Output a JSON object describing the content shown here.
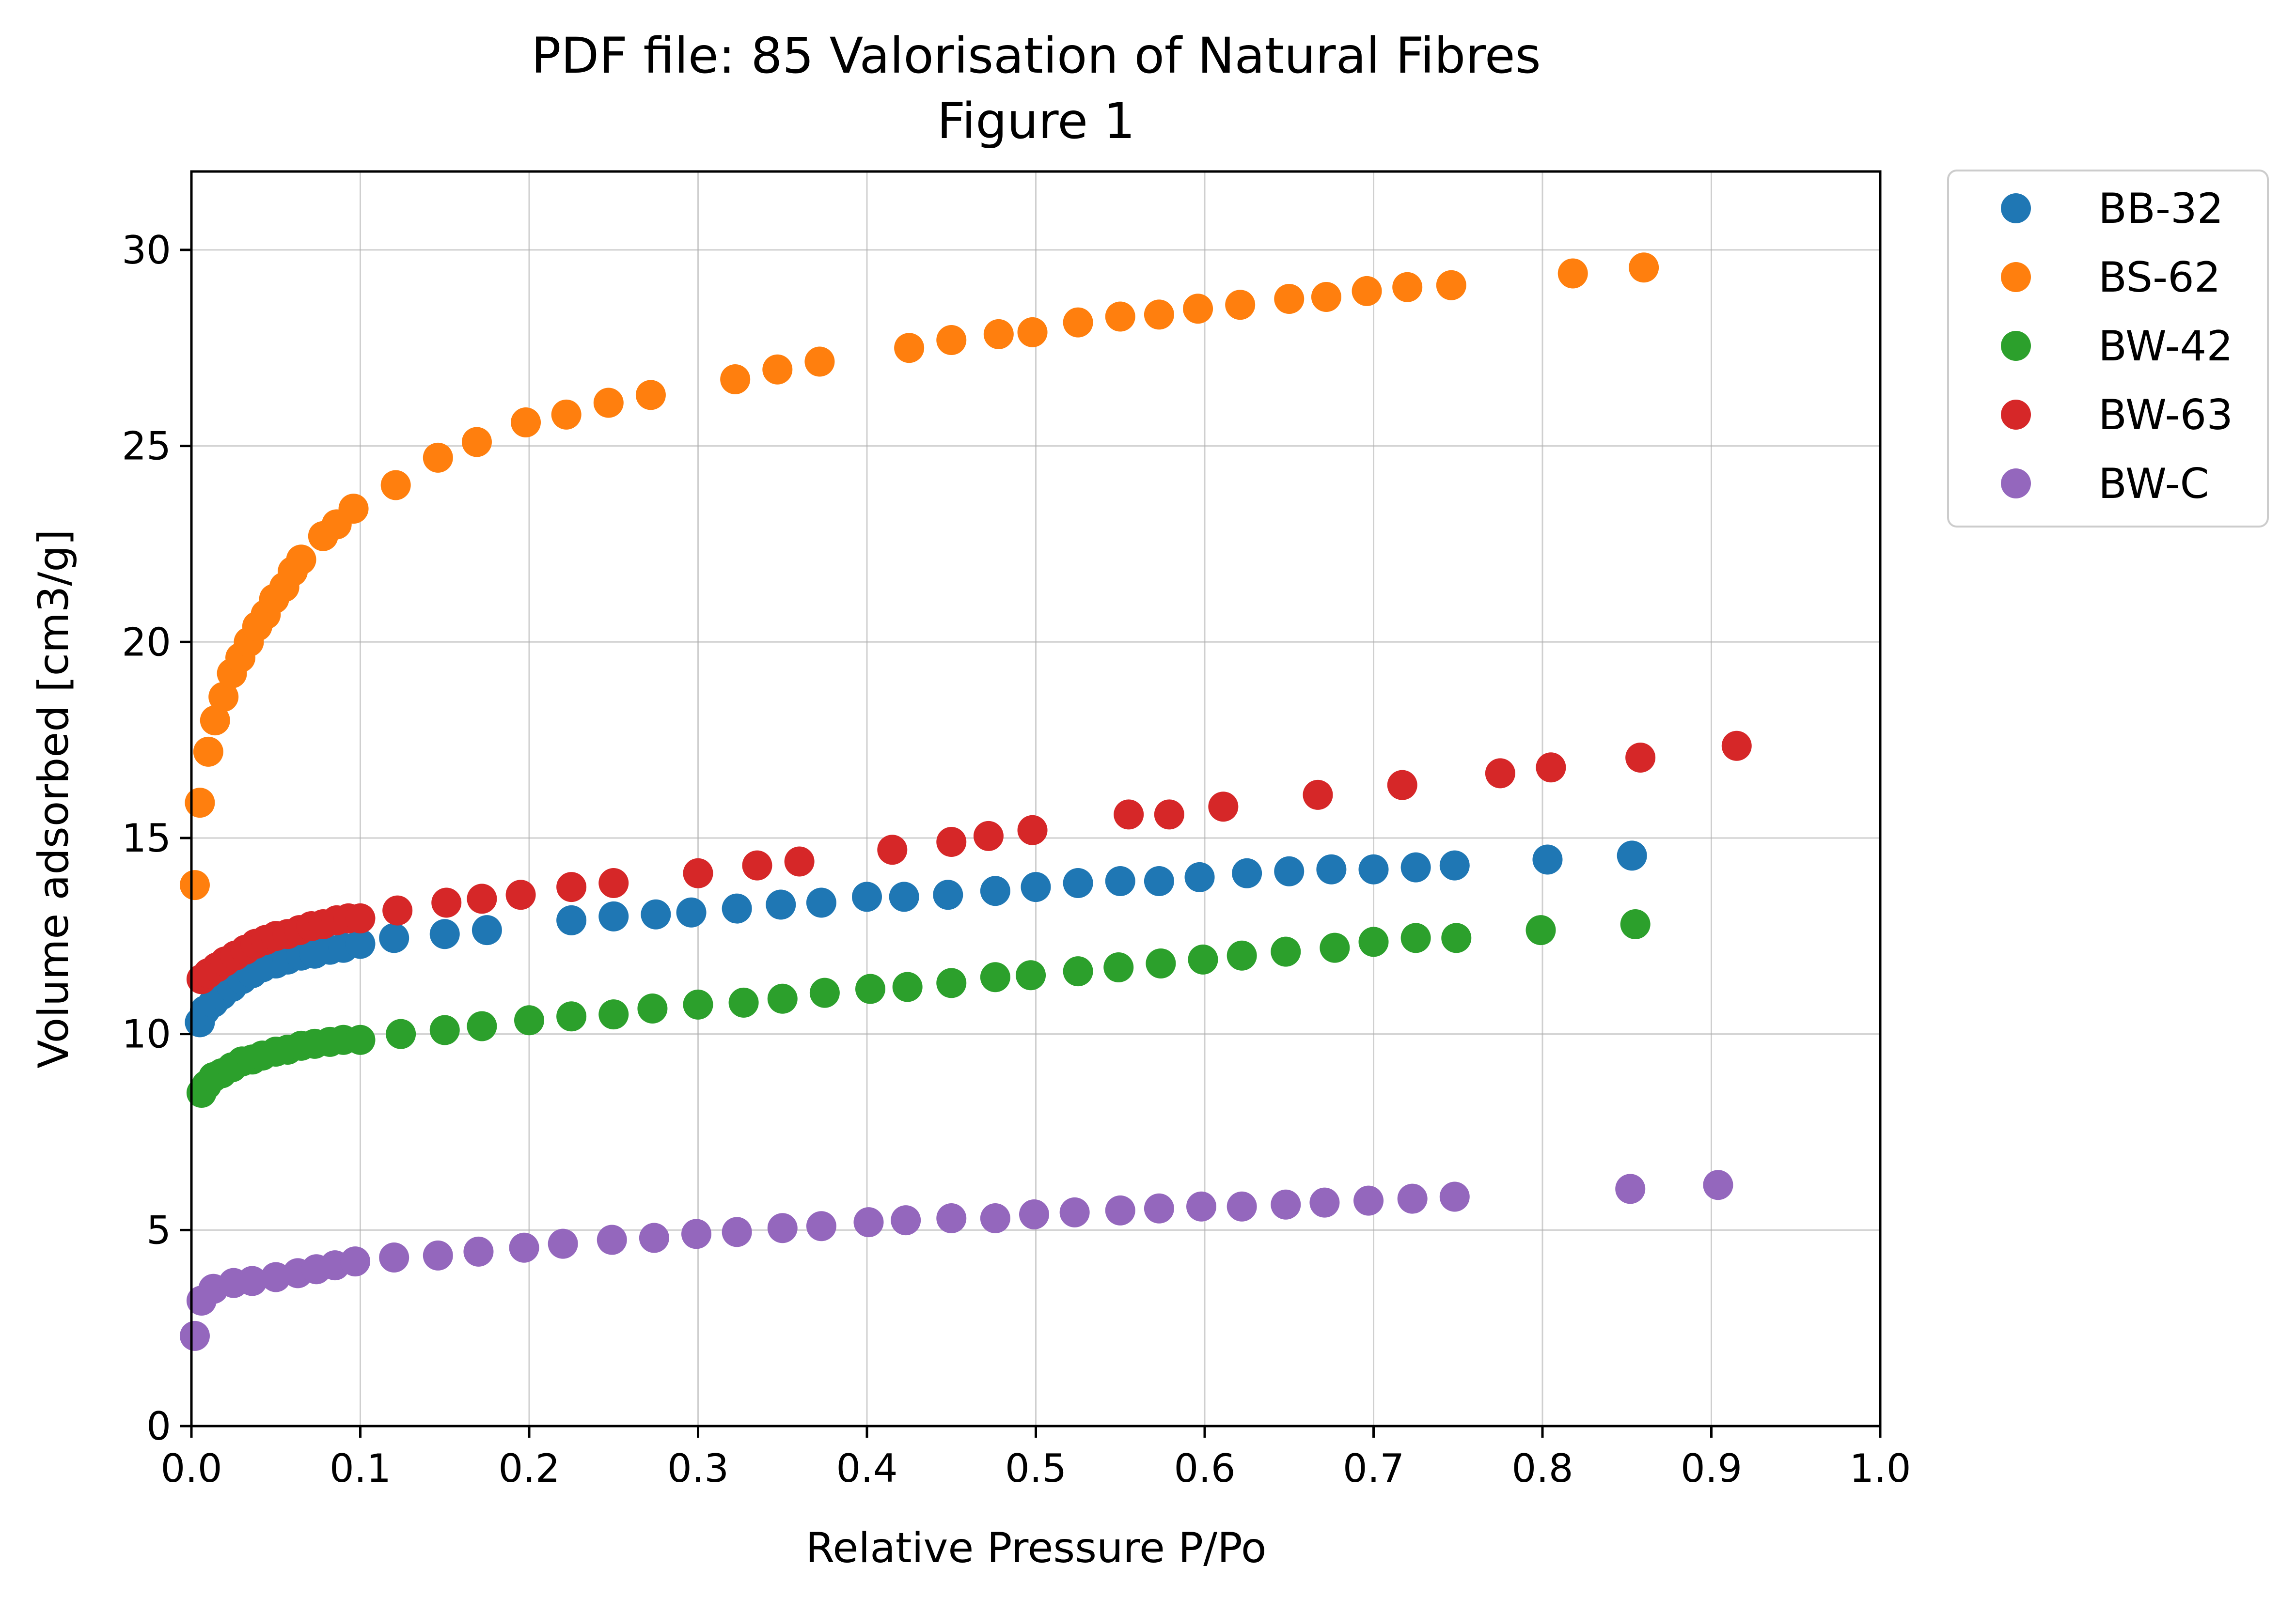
{
  "chart_data": {
    "type": "scatter",
    "title": "PDF file: 85 Valorisation of Natural Fibres",
    "subtitle": "Figure 1",
    "xlabel": "Relative Pressure P/Po",
    "ylabel": "Volume adsorbed [cm3/g]",
    "xlim": [
      0.0,
      1.0
    ],
    "ylim": [
      0,
      32
    ],
    "xticks": [
      "0.0",
      "0.1",
      "0.2",
      "0.3",
      "0.4",
      "0.5",
      "0.6",
      "0.7",
      "0.8",
      "0.9",
      "1.0"
    ],
    "yticks": [
      "0",
      "5",
      "10",
      "15",
      "20",
      "25",
      "30"
    ],
    "grid": true,
    "legend_position": "outside-top-right",
    "series": [
      {
        "name": "BB-32",
        "color": "#1f77b4",
        "points": [
          [
            0.005,
            10.3
          ],
          [
            0.008,
            10.6
          ],
          [
            0.013,
            10.8
          ],
          [
            0.018,
            11.0
          ],
          [
            0.024,
            11.2
          ],
          [
            0.03,
            11.4
          ],
          [
            0.036,
            11.55
          ],
          [
            0.042,
            11.7
          ],
          [
            0.05,
            11.8
          ],
          [
            0.057,
            11.9
          ],
          [
            0.065,
            12.0
          ],
          [
            0.073,
            12.05
          ],
          [
            0.082,
            12.15
          ],
          [
            0.09,
            12.2
          ],
          [
            0.1,
            12.3
          ],
          [
            0.12,
            12.45
          ],
          [
            0.15,
            12.55
          ],
          [
            0.175,
            12.65
          ],
          [
            0.225,
            12.9
          ],
          [
            0.25,
            13.0
          ],
          [
            0.275,
            13.05
          ],
          [
            0.296,
            13.1
          ],
          [
            0.323,
            13.2
          ],
          [
            0.349,
            13.3
          ],
          [
            0.373,
            13.35
          ],
          [
            0.4,
            13.5
          ],
          [
            0.422,
            13.5
          ],
          [
            0.448,
            13.55
          ],
          [
            0.476,
            13.65
          ],
          [
            0.5,
            13.75
          ],
          [
            0.525,
            13.85
          ],
          [
            0.55,
            13.9
          ],
          [
            0.573,
            13.9
          ],
          [
            0.597,
            14.0
          ],
          [
            0.625,
            14.1
          ],
          [
            0.65,
            14.15
          ],
          [
            0.675,
            14.2
          ],
          [
            0.7,
            14.2
          ],
          [
            0.725,
            14.25
          ],
          [
            0.748,
            14.3
          ],
          [
            0.803,
            14.45
          ],
          [
            0.853,
            14.55
          ]
        ]
      },
      {
        "name": "BS-62",
        "color": "#ff7f0e",
        "points": [
          [
            0.002,
            13.8
          ],
          [
            0.005,
            15.9
          ],
          [
            0.01,
            17.2
          ],
          [
            0.014,
            18.0
          ],
          [
            0.019,
            18.6
          ],
          [
            0.024,
            19.2
          ],
          [
            0.029,
            19.6
          ],
          [
            0.034,
            20.0
          ],
          [
            0.039,
            20.4
          ],
          [
            0.044,
            20.7
          ],
          [
            0.049,
            21.1
          ],
          [
            0.055,
            21.4
          ],
          [
            0.06,
            21.8
          ],
          [
            0.065,
            22.1
          ],
          [
            0.078,
            22.7
          ],
          [
            0.086,
            23.0
          ],
          [
            0.096,
            23.4
          ],
          [
            0.121,
            24.0
          ],
          [
            0.146,
            24.7
          ],
          [
            0.169,
            25.1
          ],
          [
            0.198,
            25.6
          ],
          [
            0.222,
            25.8
          ],
          [
            0.247,
            26.1
          ],
          [
            0.272,
            26.3
          ],
          [
            0.322,
            26.7
          ],
          [
            0.347,
            26.95
          ],
          [
            0.372,
            27.15
          ],
          [
            0.425,
            27.5
          ],
          [
            0.45,
            27.7
          ],
          [
            0.478,
            27.85
          ],
          [
            0.498,
            27.9
          ],
          [
            0.525,
            28.15
          ],
          [
            0.55,
            28.3
          ],
          [
            0.573,
            28.35
          ],
          [
            0.596,
            28.5
          ],
          [
            0.621,
            28.6
          ],
          [
            0.65,
            28.75
          ],
          [
            0.672,
            28.8
          ],
          [
            0.696,
            28.95
          ],
          [
            0.72,
            29.05
          ],
          [
            0.746,
            29.1
          ],
          [
            0.818,
            29.4
          ],
          [
            0.86,
            29.55
          ]
        ]
      },
      {
        "name": "BW-42",
        "color": "#2ca02c",
        "points": [
          [
            0.006,
            8.5
          ],
          [
            0.009,
            8.7
          ],
          [
            0.013,
            8.9
          ],
          [
            0.018,
            9.0
          ],
          [
            0.024,
            9.15
          ],
          [
            0.03,
            9.3
          ],
          [
            0.036,
            9.35
          ],
          [
            0.042,
            9.45
          ],
          [
            0.05,
            9.55
          ],
          [
            0.057,
            9.6
          ],
          [
            0.065,
            9.7
          ],
          [
            0.073,
            9.75
          ],
          [
            0.082,
            9.8
          ],
          [
            0.09,
            9.85
          ],
          [
            0.1,
            9.85
          ],
          [
            0.124,
            10.0
          ],
          [
            0.15,
            10.1
          ],
          [
            0.172,
            10.2
          ],
          [
            0.2,
            10.35
          ],
          [
            0.225,
            10.45
          ],
          [
            0.25,
            10.5
          ],
          [
            0.273,
            10.65
          ],
          [
            0.3,
            10.75
          ],
          [
            0.327,
            10.8
          ],
          [
            0.35,
            10.9
          ],
          [
            0.375,
            11.05
          ],
          [
            0.402,
            11.15
          ],
          [
            0.424,
            11.2
          ],
          [
            0.45,
            11.3
          ],
          [
            0.476,
            11.45
          ],
          [
            0.497,
            11.5
          ],
          [
            0.525,
            11.6
          ],
          [
            0.549,
            11.7
          ],
          [
            0.574,
            11.8
          ],
          [
            0.599,
            11.9
          ],
          [
            0.622,
            12.0
          ],
          [
            0.648,
            12.1
          ],
          [
            0.677,
            12.2
          ],
          [
            0.7,
            12.35
          ],
          [
            0.725,
            12.45
          ],
          [
            0.749,
            12.45
          ],
          [
            0.799,
            12.65
          ],
          [
            0.855,
            12.8
          ]
        ]
      },
      {
        "name": "BW-63",
        "color": "#d62728",
        "points": [
          [
            0.006,
            11.4
          ],
          [
            0.01,
            11.55
          ],
          [
            0.015,
            11.7
          ],
          [
            0.02,
            11.85
          ],
          [
            0.026,
            12.0
          ],
          [
            0.032,
            12.15
          ],
          [
            0.038,
            12.3
          ],
          [
            0.044,
            12.4
          ],
          [
            0.05,
            12.5
          ],
          [
            0.057,
            12.55
          ],
          [
            0.064,
            12.65
          ],
          [
            0.071,
            12.75
          ],
          [
            0.078,
            12.8
          ],
          [
            0.086,
            12.9
          ],
          [
            0.093,
            12.95
          ],
          [
            0.1,
            12.95
          ],
          [
            0.122,
            13.15
          ],
          [
            0.151,
            13.35
          ],
          [
            0.172,
            13.45
          ],
          [
            0.195,
            13.55
          ],
          [
            0.225,
            13.75
          ],
          [
            0.25,
            13.85
          ],
          [
            0.3,
            14.1
          ],
          [
            0.335,
            14.3
          ],
          [
            0.36,
            14.4
          ],
          [
            0.415,
            14.7
          ],
          [
            0.45,
            14.9
          ],
          [
            0.472,
            15.05
          ],
          [
            0.498,
            15.2
          ],
          [
            0.555,
            15.6
          ],
          [
            0.579,
            15.6
          ],
          [
            0.611,
            15.8
          ],
          [
            0.667,
            16.1
          ],
          [
            0.717,
            16.35
          ],
          [
            0.775,
            16.65
          ],
          [
            0.805,
            16.8
          ],
          [
            0.858,
            17.05
          ],
          [
            0.915,
            17.35
          ]
        ]
      },
      {
        "name": "BW-C",
        "color": "#9467bd",
        "points": [
          [
            0.002,
            2.3
          ],
          [
            0.006,
            3.2
          ],
          [
            0.013,
            3.5
          ],
          [
            0.025,
            3.65
          ],
          [
            0.036,
            3.7
          ],
          [
            0.05,
            3.8
          ],
          [
            0.063,
            3.9
          ],
          [
            0.074,
            4.0
          ],
          [
            0.085,
            4.1
          ],
          [
            0.097,
            4.2
          ],
          [
            0.12,
            4.3
          ],
          [
            0.146,
            4.35
          ],
          [
            0.17,
            4.45
          ],
          [
            0.197,
            4.55
          ],
          [
            0.22,
            4.65
          ],
          [
            0.249,
            4.75
          ],
          [
            0.274,
            4.8
          ],
          [
            0.299,
            4.9
          ],
          [
            0.323,
            4.95
          ],
          [
            0.35,
            5.05
          ],
          [
            0.373,
            5.1
          ],
          [
            0.401,
            5.2
          ],
          [
            0.423,
            5.25
          ],
          [
            0.45,
            5.3
          ],
          [
            0.476,
            5.3
          ],
          [
            0.499,
            5.4
          ],
          [
            0.523,
            5.45
          ],
          [
            0.55,
            5.5
          ],
          [
            0.573,
            5.55
          ],
          [
            0.598,
            5.6
          ],
          [
            0.622,
            5.6
          ],
          [
            0.648,
            5.65
          ],
          [
            0.671,
            5.7
          ],
          [
            0.697,
            5.75
          ],
          [
            0.723,
            5.8
          ],
          [
            0.748,
            5.85
          ],
          [
            0.852,
            6.05
          ],
          [
            0.904,
            6.15
          ]
        ]
      }
    ]
  }
}
